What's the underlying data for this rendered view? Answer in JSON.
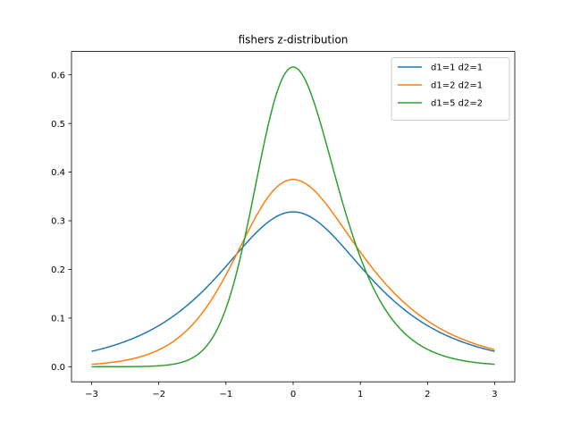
{
  "chart_data": {
    "type": "line",
    "title": "fishers z-distribution",
    "xlabel": "",
    "ylabel": "",
    "xlim": [
      -3.3,
      3.3
    ],
    "ylim": [
      -0.031,
      0.648
    ],
    "xticks": [
      -3,
      -2,
      -1,
      0,
      1,
      2,
      3
    ],
    "xtick_labels": [
      "−3",
      "−2",
      "−1",
      "0",
      "1",
      "2",
      "3"
    ],
    "yticks": [
      0.0,
      0.1,
      0.2,
      0.3,
      0.4,
      0.5,
      0.6
    ],
    "ytick_labels": [
      "0.0",
      "0.1",
      "0.2",
      "0.3",
      "0.4",
      "0.5",
      "0.6"
    ],
    "grid": false,
    "legend_position": "top-right",
    "series": [
      {
        "name": "d1=1 d2=1",
        "color": "#1f77b4",
        "d1": 1,
        "d2": 1
      },
      {
        "name": "d1=2 d2=1",
        "color": "#ff7f0e",
        "d1": 2,
        "d2": 1
      },
      {
        "name": "d1=5 d2=2",
        "color": "#2ca02c",
        "d1": 5,
        "d2": 2
      }
    ],
    "x_range": [
      -3,
      3
    ]
  }
}
